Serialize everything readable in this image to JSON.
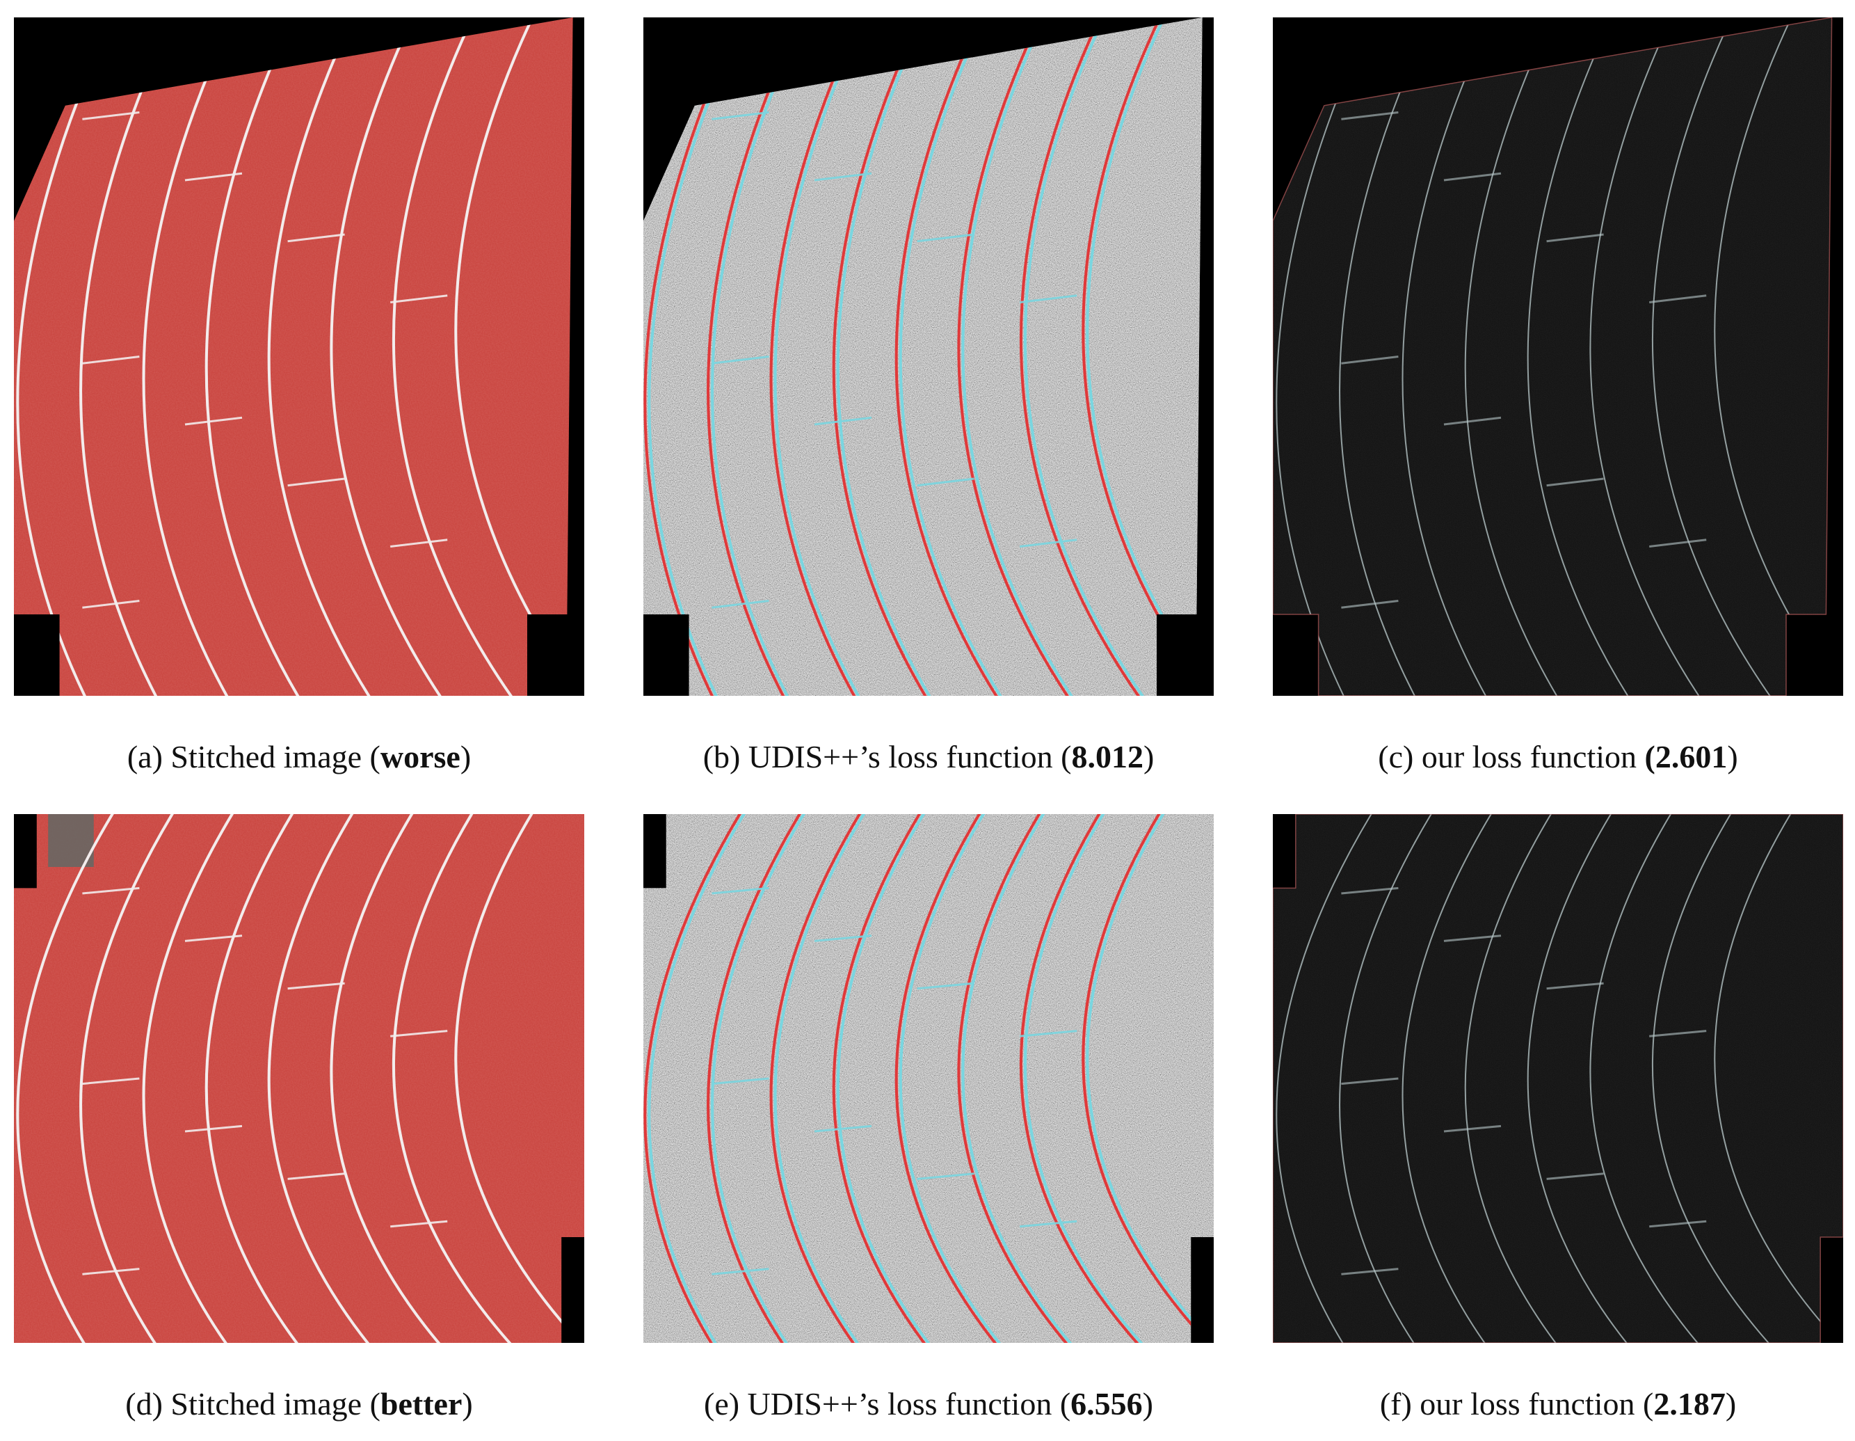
{
  "figure": {
    "panels": [
      {
        "id": "a",
        "kind": "photo",
        "caption": {
          "prefix": "(a) Stitched image (",
          "bold": "worse",
          "suffix": ")"
        }
      },
      {
        "id": "b",
        "kind": "noise",
        "caption": {
          "prefix": "(b) UDIS++’s loss function (",
          "bold": "8.012",
          "suffix": ")"
        }
      },
      {
        "id": "c",
        "kind": "dark",
        "caption": {
          "prefix": "(c) our loss function ",
          "bold": "(2.601",
          "suffix": ")"
        }
      },
      {
        "id": "d",
        "kind": "photo",
        "caption": {
          "prefix": "(d) Stitched image (",
          "bold": "better",
          "suffix": ")"
        }
      },
      {
        "id": "e",
        "kind": "noise",
        "caption": {
          "prefix": "(e) UDIS++’s loss function (",
          "bold": "6.556",
          "suffix": ")"
        }
      },
      {
        "id": "f",
        "kind": "dark",
        "caption": {
          "prefix": "(f) our loss function (",
          "bold": "2.187",
          "suffix": ")"
        }
      }
    ],
    "colors": {
      "track_red": "#c8413b",
      "track_line": "#f3ecec",
      "noise_gray": "#8a8a8a",
      "dark_bg": "#0d0d0d",
      "edge_cyan": "#7ad6e0",
      "edge_red": "#e0393a"
    }
  }
}
